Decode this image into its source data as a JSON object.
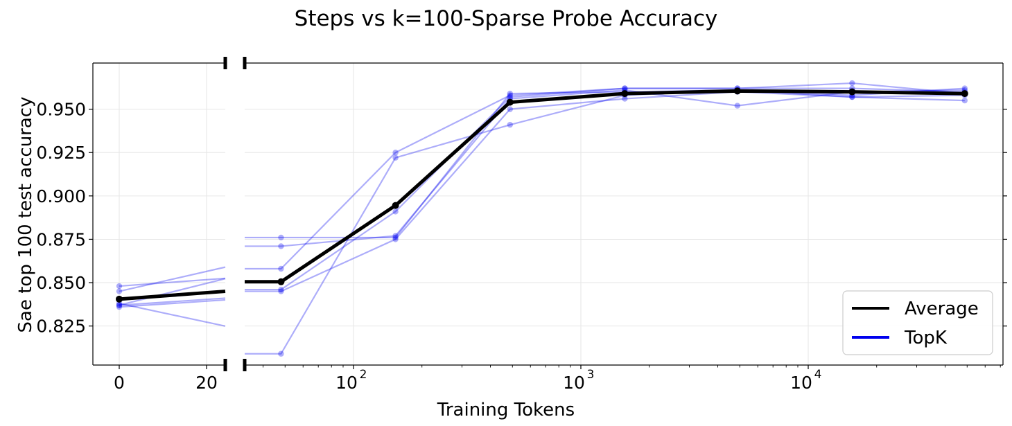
{
  "chart_data": {
    "type": "line",
    "title": "Steps vs k=100-Sparse Probe Accuracy",
    "xlabel": "Training Tokens",
    "ylabel": "Sae top 100 test accuracy",
    "x_scale": "broken: linear panel [0,20] + log panel",
    "x": [
      0,
      48,
      153,
      488,
      1560,
      4880,
      15600,
      48800
    ],
    "xticks_linear": [
      "0",
      "20"
    ],
    "xticks_log": [
      {
        "value": 100,
        "base": "10",
        "exp": "2"
      },
      {
        "value": 1000,
        "base": "10",
        "exp": "3"
      },
      {
        "value": 10000,
        "base": "10",
        "exp": "4"
      }
    ],
    "yticks": [
      "0.825",
      "0.850",
      "0.875",
      "0.900",
      "0.925",
      "0.950"
    ],
    "ylim": [
      0.8025,
      0.9766
    ],
    "grid": true,
    "legend_position": "lower-right",
    "legend": [
      {
        "label": "Average",
        "color": "#000000"
      },
      {
        "label": "TopK",
        "color": "#0000ee"
      }
    ],
    "series": [
      {
        "group": "TopK",
        "values": [
          0.848,
          0.858,
          0.925,
          0.958,
          0.962,
          0.962,
          0.965,
          0.959
        ]
      },
      {
        "group": "TopK",
        "values": [
          0.845,
          0.876,
          0.876,
          0.959,
          0.96,
          0.961,
          0.958,
          0.962
        ]
      },
      {
        "group": "TopK",
        "values": [
          0.838,
          0.809,
          0.922,
          0.941,
          0.958,
          0.961,
          0.957,
          0.958
        ]
      },
      {
        "group": "TopK",
        "values": [
          0.837,
          0.871,
          0.877,
          0.956,
          0.961,
          0.952,
          0.96,
          0.961
        ]
      },
      {
        "group": "TopK",
        "values": [
          0.836,
          0.845,
          0.875,
          0.95,
          0.956,
          0.96,
          0.957,
          0.955
        ]
      },
      {
        "group": "TopK",
        "values": [
          0.837,
          0.846,
          0.891,
          0.957,
          0.962,
          0.962,
          0.962,
          0.96
        ]
      }
    ],
    "average": {
      "name": "Average",
      "values": [
        0.8405,
        0.8505,
        0.8945,
        0.954,
        0.959,
        0.9605,
        0.96,
        0.959
      ]
    },
    "colors": {
      "average": "#000000",
      "topk": "#0000ee"
    }
  }
}
